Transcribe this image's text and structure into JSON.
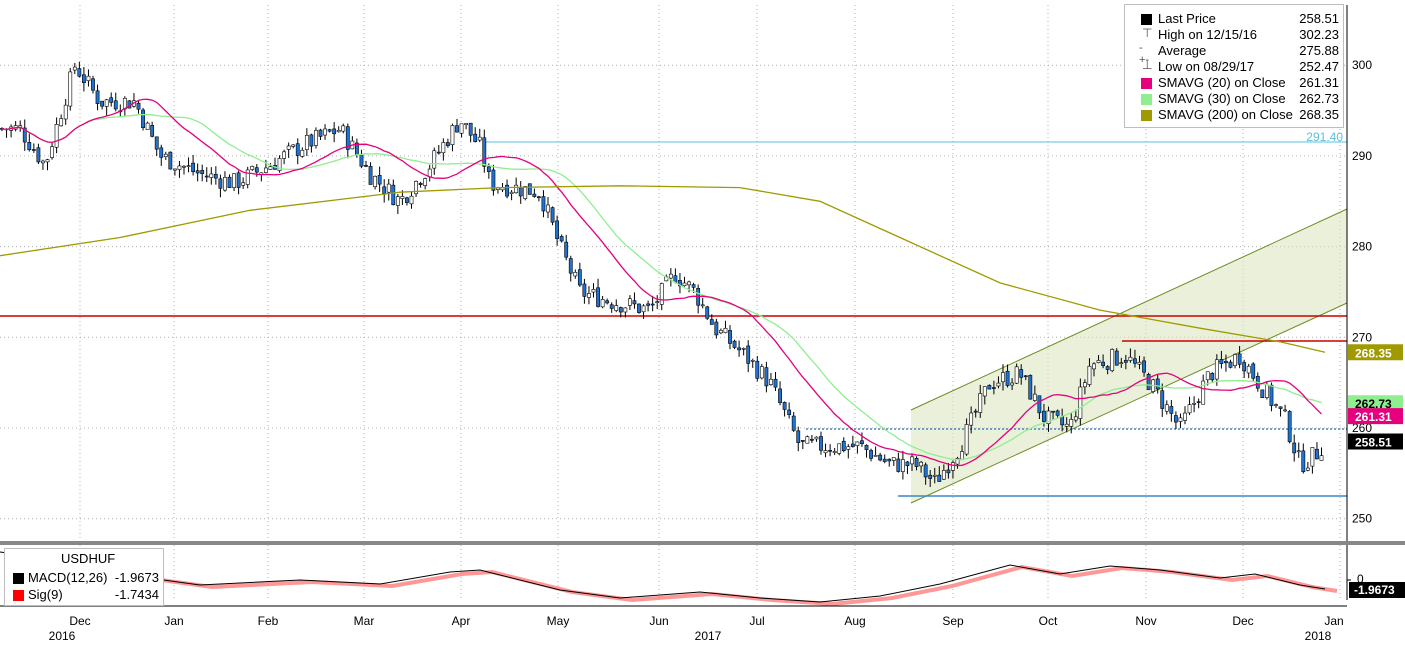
{
  "chart_data": {
    "type": "candlestick",
    "symbol": "USDHUF",
    "yaxis": {
      "ticks": [
        250,
        260,
        270,
        280,
        290,
        300
      ],
      "range": [
        245,
        307
      ]
    },
    "xaxis": {
      "months": [
        "Dec",
        "Jan",
        "Feb",
        "Mar",
        "Apr",
        "May",
        "Jun",
        "Jul",
        "Aug",
        "Sep",
        "Oct",
        "Nov",
        "Dec",
        "Jan"
      ],
      "years": [
        "2016",
        "2017",
        "2018"
      ]
    },
    "legend": [
      {
        "key": "last",
        "label": "Last Price",
        "value": "258.51",
        "color": "#000000"
      },
      {
        "key": "high",
        "label": "High on 12/15/16",
        "value": "302.23",
        "color": "#555555"
      },
      {
        "key": "avg",
        "label": "Average",
        "value": "275.88",
        "color": "#555555"
      },
      {
        "key": "low",
        "label": "Low on 08/29/17",
        "value": "252.47",
        "color": "#555555"
      },
      {
        "key": "sma20",
        "label": "SMAVG (20) on Close",
        "value": "261.31",
        "color": "#e6007e"
      },
      {
        "key": "sma30",
        "label": "SMAVG (30) on Close",
        "value": "262.73",
        "color": "#90ee90"
      },
      {
        "key": "sma200",
        "label": "SMAVG (200) on Close",
        "value": "268.35",
        "color": "#a09a00"
      }
    ],
    "price_labels": [
      {
        "value": "291.40",
        "y": 291.4,
        "color": "#5bc0de",
        "style": "text"
      },
      {
        "value": "268.35",
        "y": 268.35,
        "color": "#a09a00",
        "style": "box"
      },
      {
        "value": "262.73",
        "y": 262.73,
        "color": "#90ee90",
        "style": "box"
      },
      {
        "value": "261.31",
        "y": 261.31,
        "color": "#e6007e",
        "style": "box"
      },
      {
        "value": "258.51",
        "y": 258.51,
        "color": "#000000",
        "style": "box"
      }
    ],
    "macd": {
      "title": "USDHUF",
      "macd_label": "MACD(12,26)",
      "macd_value": "-1.9673",
      "sig_label": "Sig(9)",
      "sig_value": "-1.7434",
      "axis_tick": "0",
      "last_box": "-1.9673"
    },
    "colors": {
      "down": "#1e73d2",
      "up": "#ffffff",
      "grid": "#b0b0b0",
      "red_line": "#cc0000",
      "blue_line": "#3d85c6",
      "channel": "#6b8e23"
    }
  }
}
